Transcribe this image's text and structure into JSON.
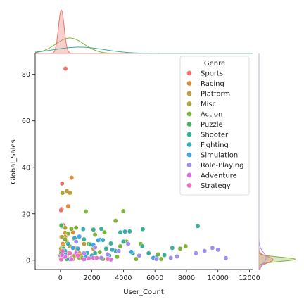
{
  "chart_data": {
    "type": "scatter",
    "xlabel": "User_Count",
    "ylabel": "Global_Sales",
    "xlim": [
      -1600,
      12200
    ],
    "ylim": [
      -4,
      89
    ],
    "xticks": [
      0,
      2000,
      4000,
      6000,
      8000,
      10000,
      12000
    ],
    "yticks": [
      0,
      20,
      40,
      60,
      80
    ],
    "legend": {
      "title": "Genre",
      "placement": "top-right"
    },
    "grid": false,
    "marginals": {
      "top": "kde",
      "right": "kde"
    },
    "series": [
      {
        "name": "Sports",
        "color": "#e8756d",
        "points": [
          [
            322,
            82.5
          ],
          [
            110,
            33
          ],
          [
            80,
            22
          ],
          [
            40,
            21.5
          ],
          [
            200,
            15
          ],
          [
            60,
            10
          ],
          [
            30,
            5
          ],
          [
            10,
            2
          ],
          [
            500,
            3
          ],
          [
            20,
            0.5
          ]
        ]
      },
      {
        "name": "Racing",
        "color": "#db8a3a",
        "points": [
          [
            709,
            35.5
          ],
          [
            500,
            23.2
          ],
          [
            800,
            12
          ],
          [
            300,
            10
          ],
          [
            150,
            7
          ],
          [
            50,
            4
          ],
          [
            1000,
            5
          ],
          [
            700,
            1
          ],
          [
            1200,
            3
          ],
          [
            400,
            2
          ]
        ]
      },
      {
        "name": "Platform",
        "color": "#c39a3a",
        "points": [
          [
            411,
            29.8
          ],
          [
            600,
            29
          ],
          [
            300,
            11.8
          ],
          [
            900,
            9
          ],
          [
            200,
            6
          ],
          [
            1500,
            7
          ],
          [
            100,
            1
          ],
          [
            1300,
            2
          ],
          [
            2100,
            5
          ],
          [
            800,
            0.5
          ]
        ]
      },
      {
        "name": "Misc",
        "color": "#a6a63a",
        "points": [
          [
            128,
            29
          ],
          [
            300,
            14
          ],
          [
            100,
            10
          ],
          [
            400,
            8
          ],
          [
            50,
            5
          ],
          [
            200,
            3
          ],
          [
            900,
            2
          ],
          [
            600,
            6
          ],
          [
            1200,
            1
          ],
          [
            30,
            0.5
          ]
        ]
      },
      {
        "name": "Action",
        "color": "#7fb33a",
        "points": [
          [
            3994,
            21.1
          ],
          [
            1616,
            21
          ],
          [
            80,
            14.6
          ],
          [
            3500,
            17
          ],
          [
            700,
            13.5
          ],
          [
            500,
            11.5
          ],
          [
            1000,
            14
          ],
          [
            2800,
            12
          ],
          [
            4200,
            8
          ],
          [
            3800,
            6
          ],
          [
            2200,
            11
          ],
          [
            5100,
            7
          ],
          [
            6200,
            2.5
          ],
          [
            7600,
            5
          ],
          [
            7950,
            6
          ],
          [
            1400,
            1
          ],
          [
            6400,
            0.5
          ],
          [
            600,
            0.5
          ],
          [
            2700,
            0.5
          ],
          [
            4800,
            0.5
          ],
          [
            3600,
            1.5
          ],
          [
            2500,
            3.5
          ],
          [
            1800,
            7
          ],
          [
            300,
            9
          ]
        ]
      },
      {
        "name": "Puzzle",
        "color": "#47b36a",
        "points": [
          [
            60,
            15
          ],
          [
            200,
            5
          ],
          [
            300,
            2
          ],
          [
            100,
            1
          ],
          [
            400,
            0.5
          ],
          [
            50,
            3
          ]
        ]
      },
      {
        "name": "Shooter",
        "color": "#3aae96",
        "points": [
          [
            8713,
            14.7
          ],
          [
            5234,
            13.4
          ],
          [
            3800,
            12
          ],
          [
            2600,
            13.5
          ],
          [
            2100,
            13.2
          ],
          [
            4400,
            12.4
          ],
          [
            1900,
            6.8
          ],
          [
            7100,
            5.3
          ],
          [
            3200,
            7.2
          ],
          [
            5600,
            3
          ],
          [
            6100,
            1.2
          ],
          [
            1500,
            9
          ],
          [
            2500,
            8.8
          ],
          [
            2900,
            5
          ],
          [
            3500,
            4
          ],
          [
            4000,
            8
          ],
          [
            4600,
            3
          ],
          [
            5200,
            6
          ],
          [
            1200,
            10
          ],
          [
            3100,
            2
          ],
          [
            2200,
            3
          ],
          [
            6600,
            2.2
          ]
        ]
      },
      {
        "name": "Fighting",
        "color": "#3aabbd",
        "points": [
          [
            1450,
            13.4
          ],
          [
            4100,
            12.3
          ],
          [
            900,
            9.5
          ],
          [
            2700,
            8.7
          ],
          [
            1100,
            5
          ],
          [
            3300,
            4.5
          ],
          [
            500,
            7
          ],
          [
            2000,
            2
          ],
          [
            300,
            4
          ],
          [
            1700,
            3.2
          ]
        ]
      },
      {
        "name": "Simulation",
        "color": "#3ea4e6",
        "points": [
          [
            1200,
            10.2
          ],
          [
            4500,
            3.6
          ],
          [
            5900,
            1
          ],
          [
            2400,
            8.6
          ],
          [
            800,
            5.3
          ],
          [
            300,
            2.5
          ],
          [
            1600,
            1.5
          ],
          [
            3000,
            0.8
          ],
          [
            2100,
            6.5
          ],
          [
            600,
            0.5
          ]
        ]
      },
      {
        "name": "Role-Playing",
        "color": "#a28ef0",
        "points": [
          [
            9650,
            5.3
          ],
          [
            10000,
            4.5
          ],
          [
            9150,
            4
          ],
          [
            8600,
            3
          ],
          [
            10500,
            0.9
          ],
          [
            7400,
            1.6
          ],
          [
            6100,
            0.5
          ],
          [
            5000,
            2
          ],
          [
            4300,
            7
          ],
          [
            3700,
            4
          ],
          [
            2200,
            5.5
          ],
          [
            1000,
            8
          ],
          [
            7000,
            1
          ],
          [
            3000,
            2.5
          ],
          [
            1500,
            3
          ],
          [
            2600,
            1
          ]
        ]
      },
      {
        "name": "Adventure",
        "color": "#dd6be6",
        "points": [
          [
            300,
            1.5
          ],
          [
            1000,
            3
          ],
          [
            2100,
            1
          ],
          [
            700,
            0.5
          ],
          [
            1500,
            0.4
          ],
          [
            3200,
            0.3
          ],
          [
            100,
            2.2
          ]
        ]
      },
      {
        "name": "Strategy",
        "color": "#ec74bf",
        "points": [
          [
            150,
            4
          ],
          [
            600,
            3
          ],
          [
            1100,
            2
          ],
          [
            2300,
            1
          ],
          [
            3000,
            0.5
          ],
          [
            50,
            0.3
          ],
          [
            1800,
            0.8
          ]
        ]
      }
    ]
  }
}
